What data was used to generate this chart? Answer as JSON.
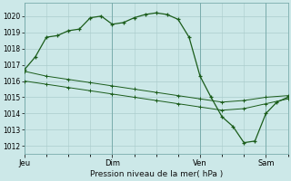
{
  "background_color": "#cce8e8",
  "grid_color": "#aacccc",
  "line_color": "#1a5c1a",
  "title": "Pression niveau de la mer( hPa )",
  "ylim": [
    1011.5,
    1020.8
  ],
  "yticks": [
    1012,
    1013,
    1014,
    1015,
    1016,
    1017,
    1018,
    1019,
    1020
  ],
  "day_labels": [
    "Jeu",
    "Dim",
    "Ven",
    "Sam"
  ],
  "day_positions": [
    0,
    8,
    16,
    22
  ],
  "xlim": [
    0,
    24
  ],
  "series1_x": [
    0,
    1,
    2,
    3,
    4,
    5,
    6,
    7,
    8,
    9,
    10,
    11,
    12,
    13,
    14,
    15,
    16,
    17,
    18,
    19,
    20,
    21,
    22,
    23,
    24
  ],
  "series1_y": [
    1016.7,
    1017.5,
    1018.7,
    1018.8,
    1019.1,
    1019.2,
    1019.9,
    1020.0,
    1019.5,
    1019.6,
    1019.9,
    1020.1,
    1020.2,
    1020.1,
    1019.8,
    1018.7,
    1016.3,
    1015.0,
    1013.8,
    1013.2,
    1012.2,
    1012.3,
    1014.0,
    1014.7,
    1015.0
  ],
  "series2_x": [
    0,
    2,
    4,
    6,
    8,
    10,
    12,
    14,
    16,
    18,
    20,
    22,
    24
  ],
  "series2_y": [
    1016.6,
    1016.3,
    1016.1,
    1015.9,
    1015.7,
    1015.5,
    1015.3,
    1015.1,
    1014.9,
    1014.7,
    1014.8,
    1015.0,
    1015.1
  ],
  "series3_x": [
    0,
    2,
    4,
    6,
    8,
    10,
    12,
    14,
    16,
    18,
    20,
    22,
    24
  ],
  "series3_y": [
    1016.0,
    1015.8,
    1015.6,
    1015.4,
    1015.2,
    1015.0,
    1014.8,
    1014.6,
    1014.4,
    1014.2,
    1014.3,
    1014.6,
    1014.9
  ]
}
